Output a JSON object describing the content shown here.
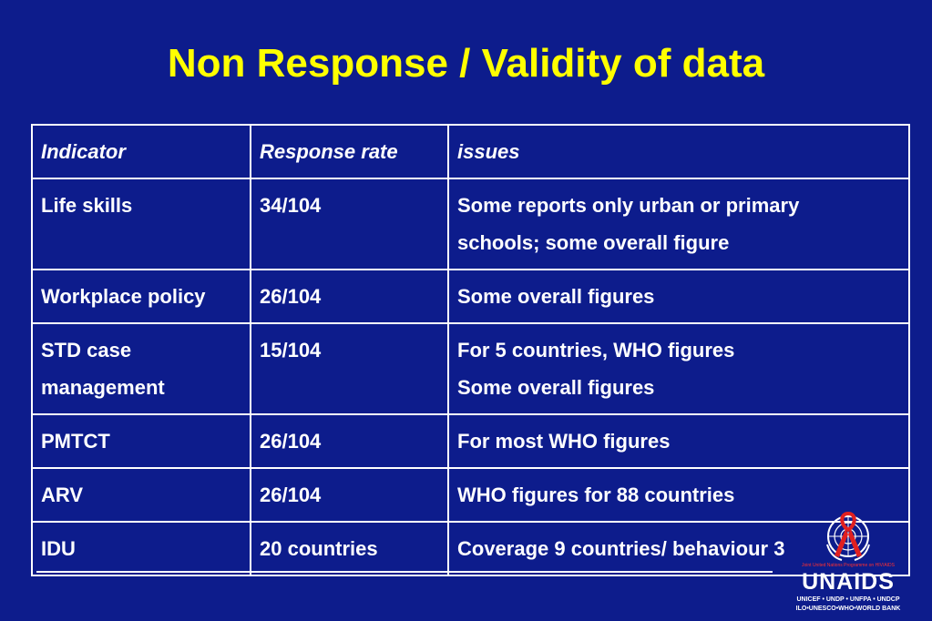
{
  "title": "Non Response / Validity of data",
  "table": {
    "headers": [
      "Indicator",
      "Response rate",
      "issues"
    ],
    "rows": [
      {
        "indicator": "Life skills",
        "rate": "34/104",
        "issues": [
          "Some reports only urban or primary",
          "schools; some overall figure"
        ]
      },
      {
        "indicator": "Workplace policy",
        "rate": "26/104",
        "issues": [
          "Some overall figures"
        ]
      },
      {
        "indicator": "STD case management",
        "rate": "15/104",
        "issues": [
          "For 5 countries, WHO figures",
          "Some overall figures"
        ]
      },
      {
        "indicator": "PMTCT",
        "rate": "26/104",
        "issues": [
          "For most WHO figures"
        ]
      },
      {
        "indicator": "ARV",
        "rate": "26/104",
        "issues": [
          "WHO figures for 88 countries"
        ]
      },
      {
        "indicator": "IDU",
        "rate": "20 countries",
        "issues": [
          "Coverage 9 countries/ behaviour 3"
        ]
      }
    ]
  },
  "logo": {
    "tagline": "Joint United Nations Programme on HIV/AIDS",
    "brand": "UNAIDS",
    "cosponsors_line1": "UNICEF • UNDP • UNFPA • UNDCP",
    "cosponsors_line2": "ILO•UNESCO•WHO•WORLD BANK"
  },
  "colors": {
    "background": "#0d1c8c",
    "title": "#ffff00",
    "text": "#ffffff",
    "ribbon": "#e02020"
  }
}
